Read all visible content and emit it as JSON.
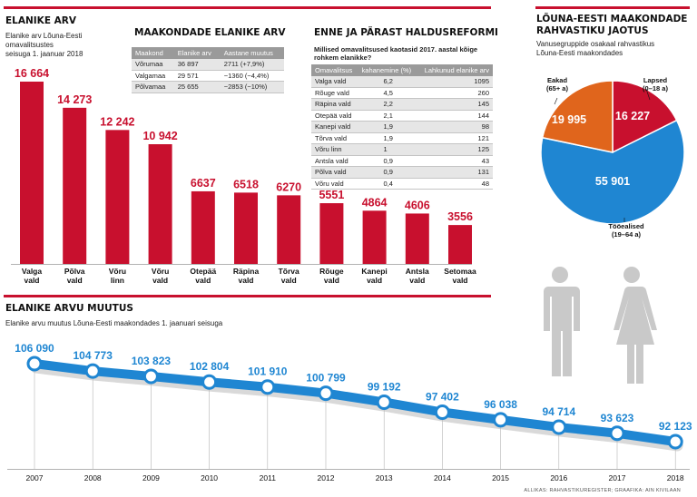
{
  "colors": {
    "red": "#c8102e",
    "blue": "#1f86d2",
    "orange": "#e0651c",
    "line": "#1f86d2",
    "gray": "#c9c9c9"
  },
  "population": {
    "title": "ELANIKE ARV",
    "subtitle_lines": [
      "Elanike arv Lõuna-Eesti",
      "omavalitsustes",
      "seisuga 1. jaanuar 2018"
    ],
    "chart_data": {
      "type": "bar",
      "title": "ELANIKE ARV",
      "categories": [
        "Valga vald",
        "Põlva vald",
        "Võru linn",
        "Võru vald",
        "Otepää vald",
        "Räpina vald",
        "Tõrva vald",
        "Rõuge vald",
        "Kanepi vald",
        "Antsla vald",
        "Setomaa vald"
      ],
      "category_lines": [
        [
          "Valga",
          "vald"
        ],
        [
          "Põlva",
          "vald"
        ],
        [
          "Võru",
          "linn"
        ],
        [
          "Võru",
          "vald"
        ],
        [
          "Otepää",
          "vald"
        ],
        [
          "Räpina",
          "vald"
        ],
        [
          "Tõrva",
          "vald"
        ],
        [
          "Rõuge",
          "vald"
        ],
        [
          "Kanepi",
          "vald"
        ],
        [
          "Antsla",
          "vald"
        ],
        [
          "Setomaa",
          "vald"
        ]
      ],
      "values": [
        16664,
        14273,
        12242,
        10942,
        6637,
        6518,
        6270,
        5551,
        4864,
        4606,
        3556
      ],
      "labels": [
        "16 664",
        "14 273",
        "12 242",
        "10 942",
        "6637",
        "6518",
        "6270",
        "5551",
        "4864",
        "4606",
        "3556"
      ],
      "ylim": [
        0,
        16664
      ]
    }
  },
  "counties": {
    "title": "MAAKONDADE ELANIKE ARV",
    "headers": [
      "Maakond",
      "Elanike arv",
      "Aastane muutus"
    ],
    "rows": [
      [
        "Võrumaa",
        "36 897",
        "2711 (+7,9%)"
      ],
      [
        "Valgamaa",
        "29 571",
        "−1360 (−4,4%)"
      ],
      [
        "Põlvamaa",
        "25 655",
        "−2853 (−10%)"
      ]
    ]
  },
  "reform": {
    "title": "ENNE JA PÄRAST HALDUSREFORMI",
    "question_lines": [
      "Millised omavalitsused kaotasid 2017. aastal kõige",
      "rohkem elanikke?"
    ],
    "headers": [
      "Omavalitsus",
      "kahanemine (%)",
      "Lahkunud elanike arv"
    ],
    "rows": [
      [
        "Valga vald",
        "6,2",
        "1095"
      ],
      [
        "Rõuge vald",
        "4,5",
        "260"
      ],
      [
        "Räpina vald",
        "2,2",
        "145"
      ],
      [
        "Otepää vald",
        "2,1",
        "144"
      ],
      [
        "Kanepi vald",
        "1,9",
        "98"
      ],
      [
        "Tõrva vald",
        "1,9",
        "121"
      ],
      [
        "Võru linn",
        "1",
        "125"
      ],
      [
        "Antsla vald",
        "0,9",
        "43"
      ],
      [
        "Põlva vald",
        "0,9",
        "131"
      ],
      [
        "Võru vald",
        "0,4",
        "48"
      ]
    ]
  },
  "age": {
    "title_lines": [
      "LÕUNA-EESTI MAAKONDADE",
      "RAHVASTIKU JAOTUS"
    ],
    "subtitle_lines": [
      "Vanusegruppide osakaal rahvastikus",
      "Lõuna-Eesti maakondades"
    ],
    "chart_data": {
      "type": "pie",
      "title": "LÕUNA-EESTI MAAKONDADE RAHVASTIKU JAOTUS",
      "slices": [
        {
          "name": "Lapsed (0–18 a)",
          "name_lines": [
            "Lapsed",
            "(0–18 a)"
          ],
          "value": 16227,
          "label": "16 227",
          "color": "#c8102e"
        },
        {
          "name": "Tööealised (19–64 a)",
          "name_lines": [
            "Tööealised",
            "(19–64 a)"
          ],
          "value": 55901,
          "label": "55 901",
          "color": "#1f86d2"
        },
        {
          "name": "Eakad (65+ a)",
          "name_lines": [
            "Eakad",
            "(65+ a)"
          ],
          "value": 19995,
          "label": "19 995",
          "color": "#e0651c"
        }
      ]
    }
  },
  "change": {
    "title": "ELANIKE ARVU MUUTUS",
    "subtitle": "Elanike arvu muutus Lõuna-Eesti maakondades 1. jaanuari seisuga",
    "chart_data": {
      "type": "line",
      "title": "ELANIKE ARVU MUUTUS",
      "x": [
        "2007",
        "2008",
        "2009",
        "2010",
        "2011",
        "2012",
        "2013",
        "2014",
        "2015",
        "2016",
        "2017",
        "2018"
      ],
      "values": [
        106090,
        104773,
        103823,
        102804,
        101910,
        100799,
        99192,
        97402,
        96038,
        94714,
        93623,
        92123
      ],
      "labels": [
        "106 090",
        "104 773",
        "103 823",
        "102 804",
        "101 910",
        "100 799",
        "99 192",
        "97 402",
        "96 038",
        "94 714",
        "93 623",
        "92 123"
      ],
      "ylim": [
        92123,
        106090
      ]
    }
  },
  "footer": "ALLIKAS: RAHVASTIKUREGISTER; GRAAFIKA: AIN KIVILAAN"
}
